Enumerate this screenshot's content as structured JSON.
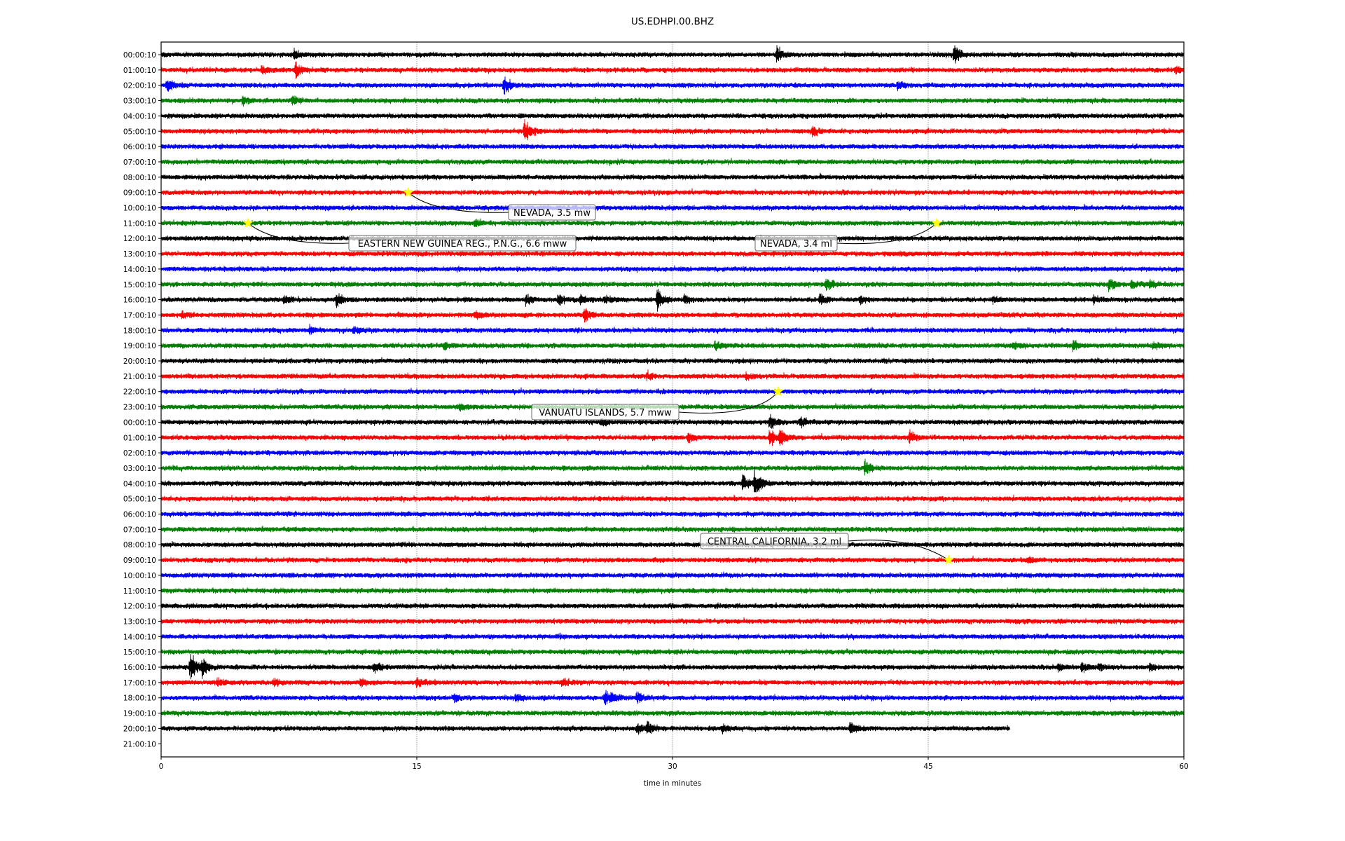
{
  "chart_data": {
    "type": "line",
    "title": "US.EDHPI.00.BHZ",
    "xlabel": "time in minutes",
    "ylabel": "",
    "xlim": [
      0,
      60
    ],
    "x_ticks": [
      "0",
      "15",
      "30",
      "45",
      "60"
    ],
    "x_tick_values": [
      0,
      15,
      30,
      45,
      60
    ],
    "grid": "vertical dotted at 15-minute ticks",
    "colors": [
      "#000000",
      "#ff0000",
      "#0000ff",
      "#008000"
    ],
    "star_color": "#ffff00",
    "row_labels": [
      "00:00:10",
      "01:00:10",
      "02:00:10",
      "03:00:10",
      "04:00:10",
      "05:00:10",
      "06:00:10",
      "07:00:10",
      "08:00:10",
      "09:00:10",
      "10:00:10",
      "11:00:10",
      "12:00:10",
      "13:00:10",
      "14:00:10",
      "15:00:10",
      "16:00:10",
      "17:00:10",
      "18:00:10",
      "19:00:10",
      "20:00:10",
      "21:00:10",
      "22:00:10",
      "23:00:10",
      "00:00:10",
      "01:00:10",
      "02:00:10",
      "03:00:10",
      "04:00:10",
      "05:00:10",
      "06:00:10",
      "07:00:10",
      "08:00:10",
      "09:00:10",
      "10:00:10",
      "11:00:10",
      "12:00:10",
      "13:00:10",
      "14:00:10",
      "15:00:10",
      "16:00:10",
      "17:00:10",
      "18:00:10",
      "19:00:10",
      "20:00:10",
      "21:00:10"
    ],
    "last_trace": {
      "row": 44,
      "end_minute": 49.8
    },
    "bursts": [
      {
        "row": 0,
        "signals": [
          [
            7.8,
            2
          ],
          [
            36.1,
            4
          ],
          [
            46.5,
            5
          ]
        ]
      },
      {
        "row": 1,
        "signals": [
          [
            5.9,
            2
          ],
          [
            7.9,
            4
          ],
          [
            59.5,
            2
          ]
        ]
      },
      {
        "row": 2,
        "signals": [
          [
            0.3,
            4
          ],
          [
            20.1,
            5
          ],
          [
            43.2,
            2
          ]
        ]
      },
      {
        "row": 3,
        "signals": [
          [
            4.8,
            2.5
          ],
          [
            7.7,
            2.5
          ]
        ]
      },
      {
        "row": 5,
        "signals": [
          [
            21.3,
            8
          ],
          [
            38.2,
            2
          ]
        ]
      },
      {
        "row": 11,
        "signals": [
          [
            18.4,
            2
          ]
        ]
      },
      {
        "row": 15,
        "signals": [
          [
            39.0,
            4
          ],
          [
            55.6,
            3
          ],
          [
            56.9,
            2
          ],
          [
            58.0,
            2
          ]
        ]
      },
      {
        "row": 16,
        "signals": [
          [
            7.2,
            2.5
          ],
          [
            10.3,
            3.5
          ],
          [
            21.4,
            3
          ],
          [
            23.3,
            3
          ],
          [
            24.6,
            2.5
          ],
          [
            26.0,
            2
          ],
          [
            29.1,
            6
          ],
          [
            30.7,
            2
          ],
          [
            38.6,
            3
          ],
          [
            41.0,
            2
          ],
          [
            48.8,
            2
          ],
          [
            54.7,
            2
          ]
        ]
      },
      {
        "row": 17,
        "signals": [
          [
            1.2,
            1.5
          ],
          [
            18.4,
            2.5
          ],
          [
            24.8,
            3.5
          ]
        ]
      },
      {
        "row": 18,
        "signals": [
          [
            8.7,
            2
          ],
          [
            11.3,
            2
          ]
        ]
      },
      {
        "row": 19,
        "signals": [
          [
            16.6,
            2
          ],
          [
            32.5,
            2.5
          ],
          [
            50.0,
            2
          ],
          [
            53.5,
            3
          ],
          [
            58.2,
            2
          ]
        ]
      },
      {
        "row": 21,
        "signals": [
          [
            28.5,
            2
          ],
          [
            34.3,
            1.5
          ]
        ]
      },
      {
        "row": 23,
        "signals": [
          [
            17.5,
            1.5
          ]
        ]
      },
      {
        "row": 24,
        "signals": [
          [
            25.8,
            2
          ],
          [
            35.7,
            4
          ],
          [
            37.5,
            3
          ]
        ]
      },
      {
        "row": 25,
        "signals": [
          [
            30.9,
            2.5
          ],
          [
            35.7,
            4
          ],
          [
            36.3,
            4
          ],
          [
            43.9,
            3.5
          ]
        ]
      },
      {
        "row": 27,
        "signals": [
          [
            41.3,
            4
          ]
        ]
      },
      {
        "row": 28,
        "signals": [
          [
            34.1,
            4
          ],
          [
            34.8,
            7
          ]
        ]
      },
      {
        "row": 33,
        "signals": [
          [
            50.8,
            1.5
          ]
        ]
      },
      {
        "row": 40,
        "signals": [
          [
            1.7,
            7
          ],
          [
            2.4,
            4
          ],
          [
            12.5,
            2.5
          ],
          [
            52.6,
            2
          ],
          [
            54.0,
            3
          ],
          [
            55.0,
            2
          ],
          [
            58.0,
            2
          ]
        ]
      },
      {
        "row": 41,
        "signals": [
          [
            3.3,
            2
          ],
          [
            6.6,
            2
          ],
          [
            11.7,
            2
          ],
          [
            15.0,
            2.5
          ],
          [
            23.5,
            2
          ]
        ]
      },
      {
        "row": 42,
        "signals": [
          [
            17.2,
            2
          ],
          [
            20.8,
            2
          ],
          [
            26.0,
            4
          ],
          [
            26.4,
            3
          ],
          [
            27.9,
            3
          ]
        ]
      },
      {
        "row": 44,
        "signals": [
          [
            27.9,
            3
          ],
          [
            28.5,
            3
          ],
          [
            32.9,
            2
          ],
          [
            40.4,
            3
          ]
        ]
      }
    ],
    "annotations": [
      {
        "text": "NEVADA, 3.5 mw",
        "row": 9,
        "minute": 14.5
      },
      {
        "text": "EASTERN NEW GUINEA REG., P.N.G., 6.6 mww",
        "row": 11,
        "minute": 5.1
      },
      {
        "text": "NEVADA, 3.4 ml",
        "row": 11,
        "minute": 45.5
      },
      {
        "text": "VANUATU ISLANDS, 5.7 mww",
        "row": 22,
        "minute": 36.2
      },
      {
        "text": "CENTRAL CALIFORNIA, 3.2 ml",
        "row": 33,
        "minute": 46.2
      }
    ]
  }
}
